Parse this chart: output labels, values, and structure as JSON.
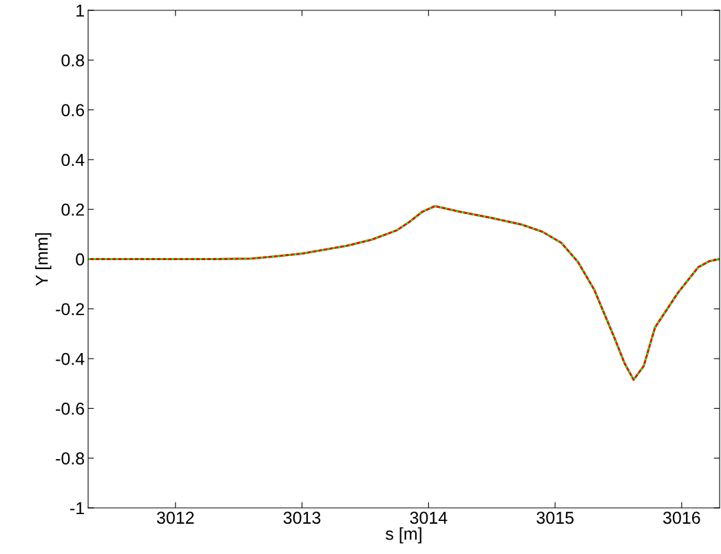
{
  "chart_data": {
    "type": "line",
    "xlabel": "s [m]",
    "ylabel": "Y [mm]",
    "x": [
      3011.31,
      3011.8,
      3012.3,
      3012.6,
      3012.79,
      3013.0,
      3013.35,
      3013.55,
      3013.75,
      3013.85,
      3013.95,
      3014.05,
      3014.25,
      3014.5,
      3014.74,
      3014.9,
      3015.05,
      3015.18,
      3015.31,
      3015.47,
      3015.55,
      3015.62,
      3015.7,
      3015.79,
      3015.97,
      3016.13,
      3016.22,
      3016.3
    ],
    "series": [
      {
        "color": "#ff0000",
        "line_style": "solid",
        "values": [
          0,
          0,
          0,
          0.002,
          0.011,
          0.022,
          0.053,
          0.078,
          0.116,
          0.15,
          0.19,
          0.213,
          0.19,
          0.165,
          0.138,
          0.11,
          0.065,
          -0.011,
          -0.124,
          -0.318,
          -0.42,
          -0.485,
          -0.43,
          -0.274,
          -0.136,
          -0.033,
          -0.008,
          0
        ]
      },
      {
        "color": "#00ff00",
        "line_style": "dotted",
        "values": [
          0,
          0,
          0,
          0.002,
          0.011,
          0.022,
          0.053,
          0.078,
          0.116,
          0.15,
          0.19,
          0.213,
          0.19,
          0.165,
          0.138,
          0.11,
          0.065,
          -0.011,
          -0.124,
          -0.318,
          -0.42,
          -0.485,
          -0.43,
          -0.274,
          -0.136,
          -0.033,
          -0.008,
          0
        ]
      }
    ],
    "xlim": [
      3011.31,
      3016.3
    ],
    "xticks": [
      3012,
      3013,
      3014,
      3015,
      3016
    ],
    "ylim": [
      -1,
      1
    ],
    "yticks": [
      -1,
      -0.8,
      -0.6,
      -0.4,
      -0.2,
      0,
      0.2,
      0.4,
      0.6,
      0.8,
      1
    ],
    "grid": false
  }
}
